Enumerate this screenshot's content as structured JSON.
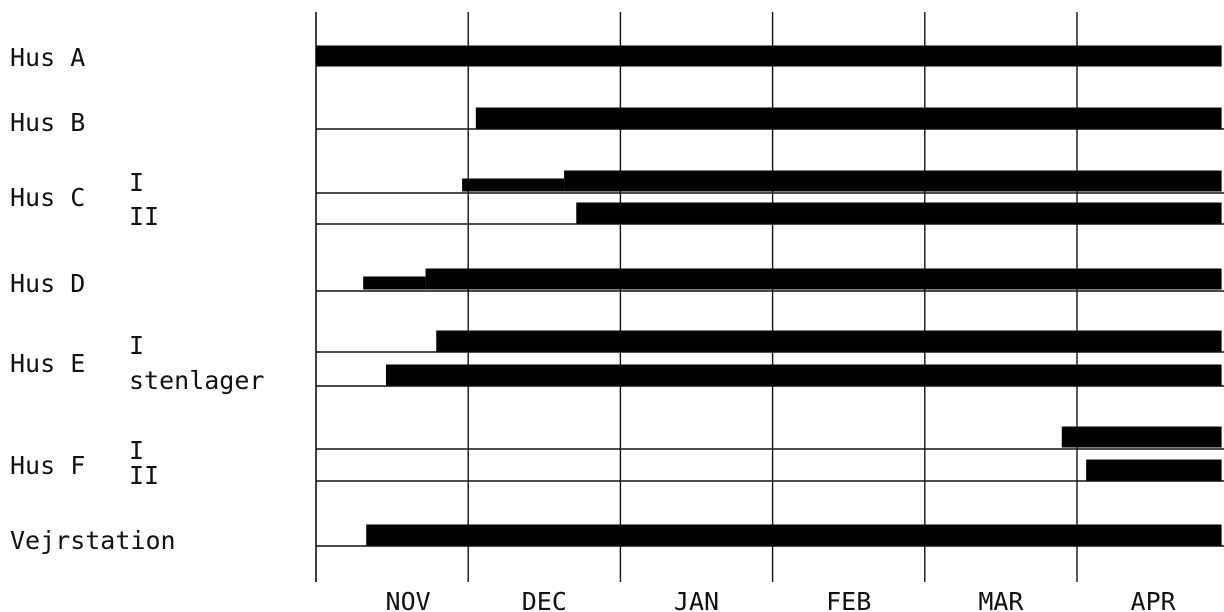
{
  "chart_data": {
    "type": "gantt",
    "categories": [
      "NOV",
      "DEC",
      "JAN",
      "FEB",
      "MAR",
      "APR"
    ],
    "x_unit": "months (NOV = 0)",
    "xlim": [
      0,
      5.95
    ],
    "grid": true,
    "rows": [
      {
        "label": "Hus A",
        "sub": "",
        "segments": [
          {
            "start": 0.0,
            "end": 5.95,
            "weight": "thick"
          }
        ]
      },
      {
        "label": "Hus B",
        "sub": "",
        "segments": [
          {
            "start": 1.05,
            "end": 5.95,
            "weight": "thick"
          }
        ]
      },
      {
        "label": "Hus C",
        "sub": "I",
        "segments": [
          {
            "start": 0.96,
            "end": 1.63,
            "weight": "thin"
          },
          {
            "start": 1.63,
            "end": 5.95,
            "weight": "thick"
          }
        ]
      },
      {
        "label": "",
        "sub": "II",
        "segments": [
          {
            "start": 1.71,
            "end": 5.95,
            "weight": "thick"
          }
        ]
      },
      {
        "label": "Hus D",
        "sub": "",
        "segments": [
          {
            "start": 0.31,
            "end": 0.72,
            "weight": "thin"
          },
          {
            "start": 0.72,
            "end": 5.95,
            "weight": "thick"
          }
        ]
      },
      {
        "label": "Hus E",
        "sub": "I",
        "segments": [
          {
            "start": 0.79,
            "end": 5.95,
            "weight": "thick"
          }
        ]
      },
      {
        "label": "",
        "sub": "stenlager",
        "segments": [
          {
            "start": 0.46,
            "end": 5.95,
            "weight": "thick"
          }
        ]
      },
      {
        "label": "Hus F",
        "sub": "I",
        "segments": [
          {
            "start": 4.9,
            "end": 5.95,
            "weight": "thick"
          }
        ]
      },
      {
        "label": "",
        "sub": "II",
        "segments": [
          {
            "start": 5.06,
            "end": 5.95,
            "weight": "thick"
          }
        ]
      },
      {
        "label": "Vejrstation",
        "sub": "",
        "segments": [
          {
            "start": 0.33,
            "end": 5.95,
            "weight": "thick"
          }
        ]
      }
    ]
  }
}
